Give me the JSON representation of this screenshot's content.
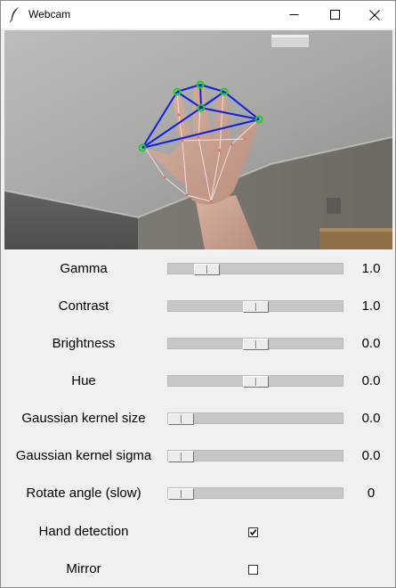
{
  "window": {
    "title": "Webcam",
    "app_icon": "feather-icon"
  },
  "titlebar_buttons": {
    "minimize": "minimize-icon",
    "maximize": "maximize-icon",
    "close": "close-icon"
  },
  "video": {
    "content": "webcam frame with hand landmarks",
    "landmark_line_color": "#1020e0",
    "landmark_point_color": "#19d41a",
    "skeleton_color": "#f4dada"
  },
  "controls": {
    "sliders": [
      {
        "label": "Gamma",
        "value_text": "1.0",
        "position": 0.175
      },
      {
        "label": "Contrast",
        "value_text": "1.0",
        "position": 0.5
      },
      {
        "label": "Brightness",
        "value_text": "0.0",
        "position": 0.5
      },
      {
        "label": "Hue",
        "value_text": "0.0",
        "position": 0.5
      },
      {
        "label": "Gaussian kernel size",
        "value_text": "0.0",
        "position": 0.0
      },
      {
        "label": "Gaussian kernel sigma",
        "value_text": "0.0",
        "position": 0.0
      },
      {
        "label": "Rotate angle (slow)",
        "value_text": "0",
        "position": 0.0
      }
    ],
    "checkboxes": [
      {
        "label": "Hand detection",
        "checked": true
      },
      {
        "label": "Mirror",
        "checked": false
      }
    ]
  },
  "colors": {
    "window_background": "#f0f0f0",
    "slider_track": "#c7c7c7",
    "titlebar": "#ffffff"
  }
}
